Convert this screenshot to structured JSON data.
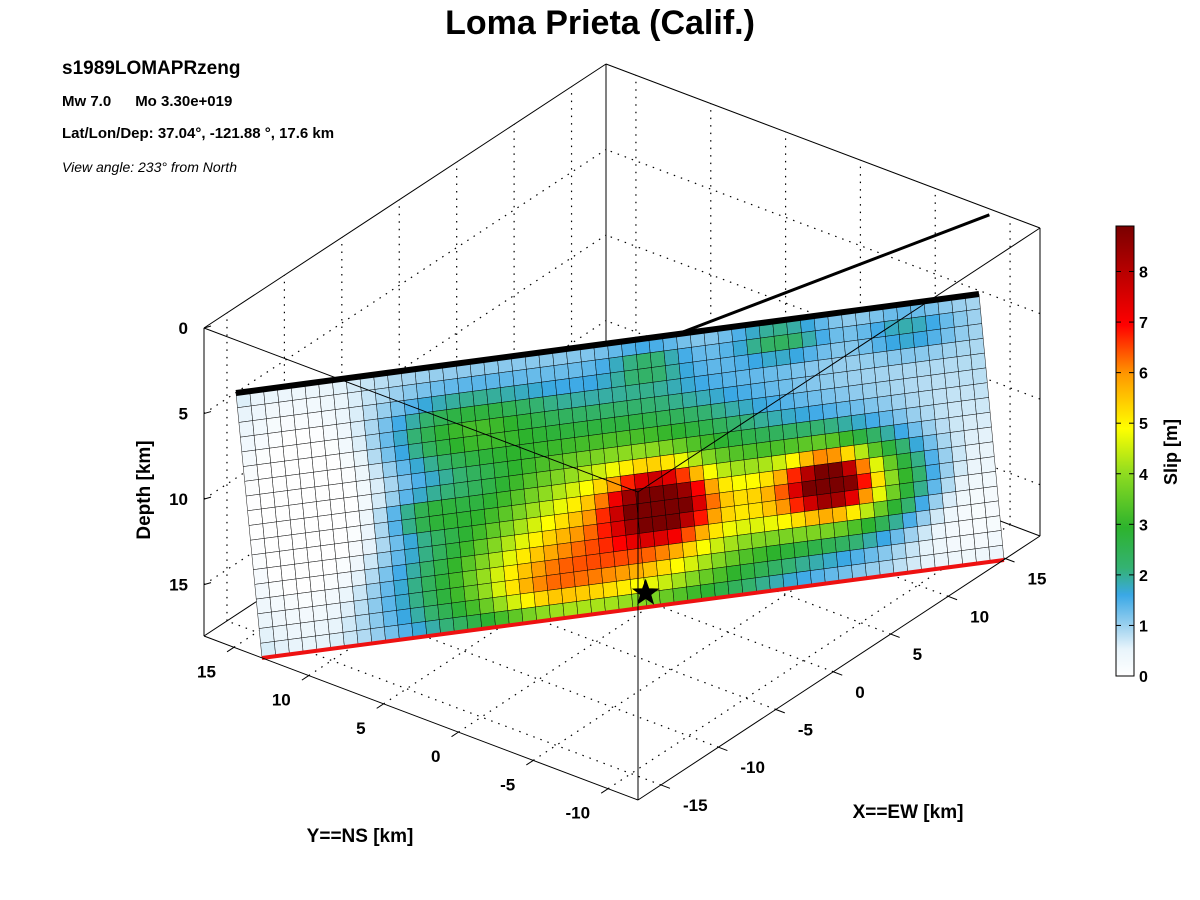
{
  "figure": {
    "event_id": "s1989LOMAPRzeng",
    "magnitude": "Mw 7.0",
    "moment": "Mo 3.30e+019",
    "location": "Lat/Lon/Dep: 37.04°, -121.88 °, 17.6 km",
    "view": "View angle: 233° from North"
  },
  "chart_data": {
    "type": "heatmap",
    "title": "Loma Prieta (Calif.)",
    "xlabel": "X==EW [km]",
    "ylabel": "Y==NS [km]",
    "zlabel": "Depth [km]",
    "x_ticks": [
      -15,
      -10,
      -5,
      0,
      5,
      10,
      15
    ],
    "y_ticks": [
      -10,
      -5,
      0,
      5,
      10,
      15
    ],
    "z_ticks": [
      0,
      5,
      10,
      15
    ],
    "x_range": [
      -17,
      18
    ],
    "y_range": [
      -12,
      17
    ],
    "z_range": [
      0,
      18
    ],
    "grid": true,
    "colorbar": {
      "label": "Slip [m]",
      "ticks": [
        0,
        1,
        2,
        3,
        4,
        5,
        6,
        7,
        8
      ],
      "range": [
        0,
        8.9
      ]
    },
    "hypocenter": {
      "x": 0,
      "y": 0,
      "depth": 17.6
    },
    "fault_plane": {
      "along_strike_cells": 54,
      "down_dip_cells": 18,
      "slip_patches": [
        {
          "s": 0.55,
          "d": 0.62,
          "rs": 0.06,
          "rd": 0.12,
          "slip": 5.5
        },
        {
          "s": 0.5,
          "d": 0.62,
          "rs": 0.2,
          "rd": 0.35,
          "slip": 4.0
        },
        {
          "s": 0.42,
          "d": 0.85,
          "rs": 0.2,
          "rd": 0.2,
          "slip": 2.8
        },
        {
          "s": 0.78,
          "d": 0.65,
          "rs": 0.12,
          "rd": 0.17,
          "slip": 5.0
        },
        {
          "s": 0.78,
          "d": 0.62,
          "rs": 0.045,
          "rd": 0.1,
          "slip": 4.0
        },
        {
          "s": 0.3,
          "d": 0.25,
          "rs": 0.1,
          "rd": 0.13,
          "slip": 1.8
        },
        {
          "s": 0.24,
          "d": 0.55,
          "rs": 0.05,
          "rd": 0.07,
          "slip": 1.2
        },
        {
          "s": 0.38,
          "d": 0.88,
          "rs": 0.06,
          "rd": 0.08,
          "slip": 0.8
        },
        {
          "s": 0.55,
          "d": 0.1,
          "rs": 0.05,
          "rd": 0.08,
          "slip": 1.0
        },
        {
          "s": 0.73,
          "d": 0.07,
          "rs": 0.06,
          "rd": 0.08,
          "slip": 1.4
        },
        {
          "s": 0.9,
          "d": 0.1,
          "rs": 0.06,
          "rd": 0.08,
          "slip": 1.0
        }
      ]
    }
  }
}
